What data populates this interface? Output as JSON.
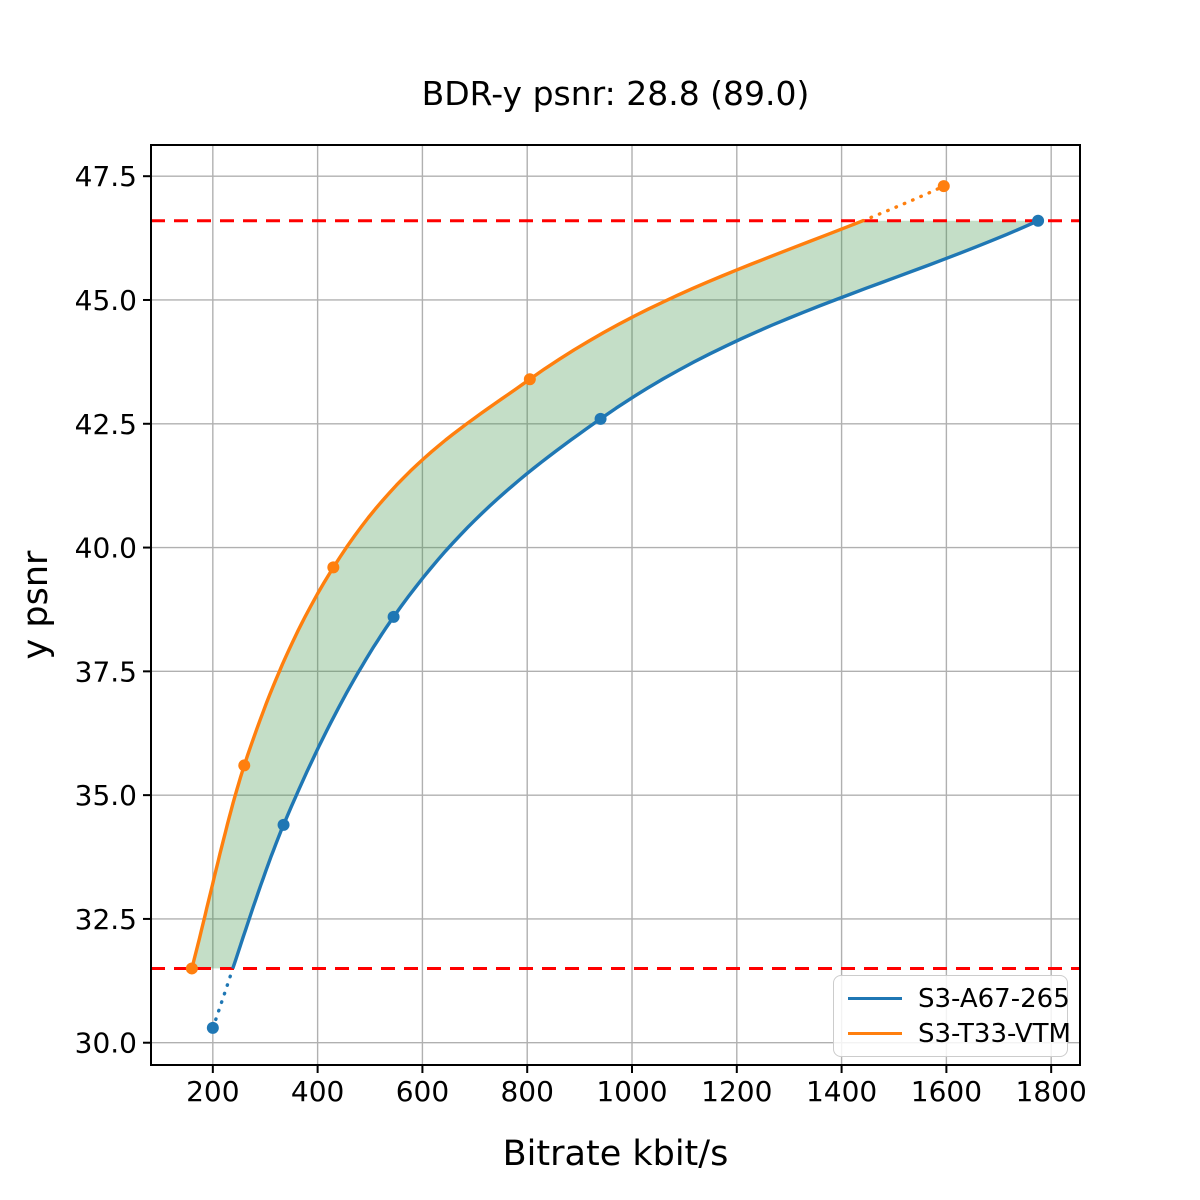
{
  "chart_data": {
    "type": "line",
    "title": "BDR-y psnr: 28.8 (89.0)",
    "xlabel": "Bitrate kbit/s",
    "ylabel": "y psnr",
    "xlim": [
      82,
      1855
    ],
    "ylim": [
      29.55,
      48.13
    ],
    "x_ticks": [
      200,
      400,
      600,
      800,
      1000,
      1200,
      1400,
      1600,
      1800
    ],
    "y_ticks": [
      30.0,
      32.5,
      35.0,
      37.5,
      40.0,
      42.5,
      45.0,
      47.5
    ],
    "grid": true,
    "grid_color": "#b0b0b0",
    "legend_position": "lower right",
    "series": [
      {
        "name": "S3-A67-265",
        "color": "#1f77b4",
        "points": [
          [
            200,
            30.3
          ],
          [
            335,
            34.4
          ],
          [
            545,
            38.6
          ],
          [
            940,
            42.6
          ],
          [
            1775,
            46.6
          ]
        ],
        "dotted_region": "below_lower_hline"
      },
      {
        "name": "S3-T33-VTM",
        "color": "#ff7f0e",
        "points": [
          [
            160,
            31.5
          ],
          [
            260,
            35.6
          ],
          [
            430,
            39.6
          ],
          [
            805,
            43.4
          ],
          [
            1595,
            47.3
          ]
        ],
        "dotted_region": "above_upper_hline"
      }
    ],
    "hlines": {
      "values": [
        31.5,
        46.6
      ],
      "color": "#ff0000",
      "style": "dashed"
    },
    "fill_between": {
      "between": [
        "S3-T33-VTM",
        "S3-A67-265"
      ],
      "y_range": [
        31.5,
        46.6
      ],
      "color": "#3c9146",
      "opacity": 0.3
    }
  }
}
